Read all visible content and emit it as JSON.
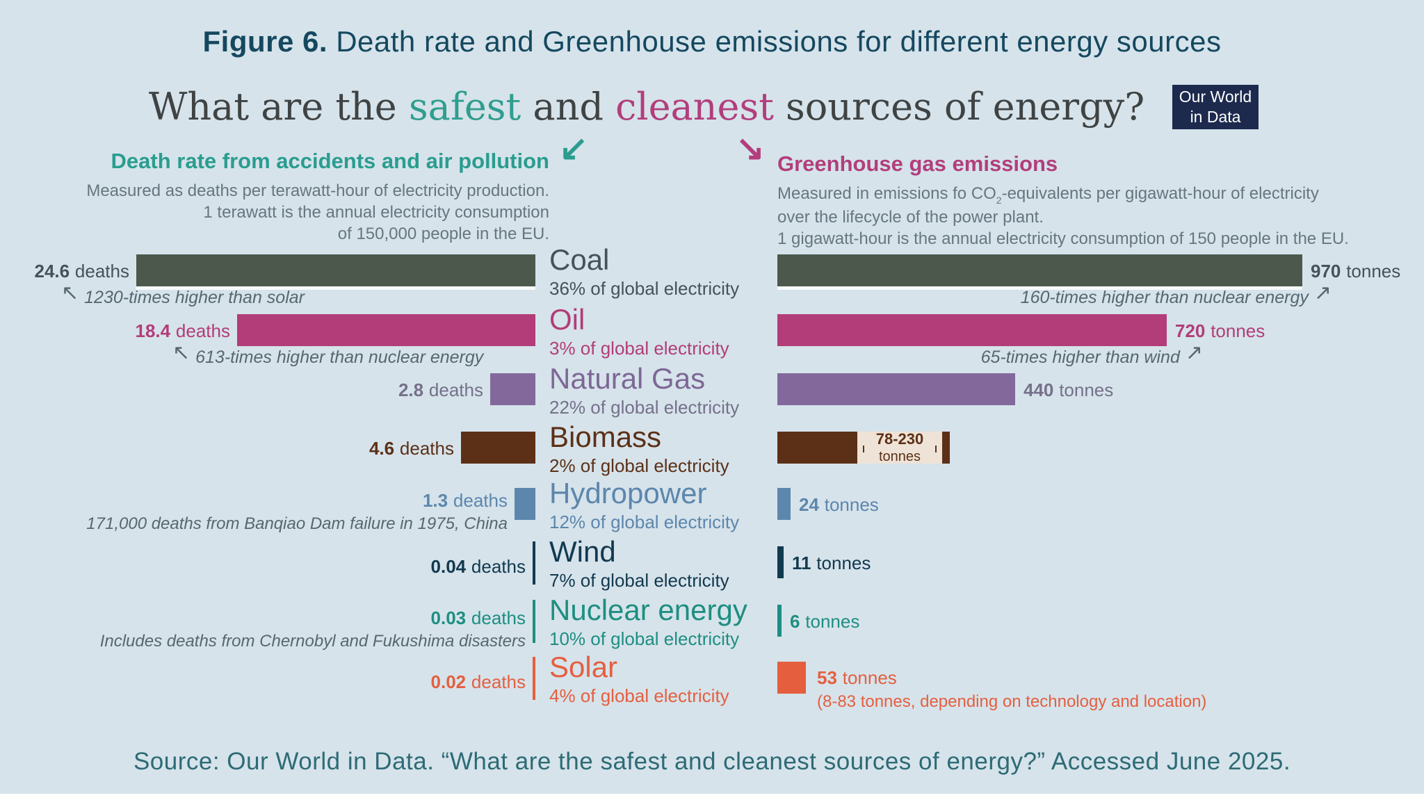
{
  "title": {
    "prefix": "Figure 6.",
    "rest": " Death rate and Greenhouse emissions for different energy sources"
  },
  "subtitle": {
    "part1": "What are the ",
    "safest": "safest",
    "part2": " and ",
    "cleanest": "cleanest",
    "part3": " sources of energy?"
  },
  "logo": {
    "line1": "Our World",
    "line2": "in Data"
  },
  "icons": {
    "down_left_arrow": "↙",
    "down_right_arrow": "↘",
    "up_left_arrow": "↖",
    "up_right_arrow": "↗"
  },
  "left_panel": {
    "heading": "Death rate from accidents and air pollution",
    "sub1": "Measured as deaths per terawatt-hour of electricity production.",
    "sub2": "1 terawatt is the annual electricity consumption",
    "sub3": "of 150,000 people in the EU."
  },
  "right_panel": {
    "heading": "Greenhouse gas emissions",
    "sub1_pre": "Measured in emissions fo CO",
    "sub1_sub": "2",
    "sub1_post": "-equivalents per gigawatt-hour of electricity",
    "sub2": "over the lifecycle of the power plant.",
    "sub3": "1 gigawatt-hour is the annual electricity consumption of 150 people in the EU."
  },
  "source": "Source: Our World in Data. “What are the safest and cleanest sources of energy?” Accessed June 2025.",
  "rows": [
    {
      "name": "Coal",
      "share": "36% of global electricity",
      "deaths_value": "24.6",
      "deaths_unit": "deaths",
      "tonnes_value": "970",
      "tonnes_unit": "tonnes",
      "left_note": "1230-times higher than solar",
      "right_note": "160-times higher than nuclear energy"
    },
    {
      "name": "Oil",
      "share": "3% of global electricity",
      "deaths_value": "18.4",
      "deaths_unit": "deaths",
      "tonnes_value": "720",
      "tonnes_unit": "tonnes",
      "left_note": "613-times higher than nuclear energy",
      "right_note": "65-times higher than wind"
    },
    {
      "name": "Natural Gas",
      "share": "22% of global electricity",
      "deaths_value": "2.8",
      "deaths_unit": "deaths",
      "tonnes_value": "440",
      "tonnes_unit": "tonnes"
    },
    {
      "name": "Biomass",
      "share": "2% of global electricity",
      "deaths_value": "4.6",
      "deaths_unit": "deaths",
      "range_top": "78-230",
      "range_bottom": "tonnes"
    },
    {
      "name": "Hydropower",
      "share": "12% of global electricity",
      "deaths_value": "1.3",
      "deaths_unit": "deaths",
      "tonnes_value": "24",
      "tonnes_unit": "tonnes",
      "left_note": "171,000 deaths from Banqiao Dam failure in 1975, China"
    },
    {
      "name": "Wind",
      "share": "7% of global electricity",
      "deaths_value": "0.04",
      "deaths_unit": "deaths",
      "tonnes_value": "11",
      "tonnes_unit": "tonnes"
    },
    {
      "name": "Nuclear energy",
      "share": "10% of global electricity",
      "deaths_value": "0.03",
      "deaths_unit": "deaths",
      "tonnes_value": "6",
      "tonnes_unit": "tonnes",
      "left_note": "Includes deaths from Chernobyl and Fukushima disasters"
    },
    {
      "name": "Solar",
      "share": "4% of global electricity",
      "deaths_value": "0.02",
      "deaths_unit": "deaths",
      "tonnes_value": "53",
      "tonnes_unit": "tonnes",
      "tonnes_note": "(8-83 tonnes, depending on technology and location)"
    }
  ],
  "colors": {
    "background": "#d6e3eb",
    "title": "#15485f",
    "safest_accent": "#2f9e8e",
    "cleanest_accent": "#b23e7c",
    "coal": "#4d584d",
    "oil": "#b23d78",
    "natural_gas": "#83699b",
    "biomass": "#5c3017",
    "hydropower": "#5d86ac",
    "wind": "#0f3a4f",
    "nuclear": "#1e8e81",
    "solar": "#e55f3f",
    "annotation_gray": "#57676f",
    "range_box": "#efe3d7",
    "logo_bg": "#1d2a4e",
    "source_text": "#2d6b75"
  },
  "chart_data": {
    "type": "bar",
    "orientation": "horizontal",
    "title": "What are the safest and cleanest sources of energy?",
    "categories": [
      "Coal",
      "Oil",
      "Natural Gas",
      "Biomass",
      "Hydropower",
      "Wind",
      "Nuclear energy",
      "Solar"
    ],
    "series": [
      {
        "name": "Death rate from accidents and air pollution (deaths per terawatt-hour)",
        "values": [
          24.6,
          18.4,
          2.8,
          4.6,
          1.3,
          0.04,
          0.03,
          0.02
        ]
      },
      {
        "name": "Greenhouse gas emissions (tonnes CO2-equivalents per gigawatt-hour)",
        "values": [
          970,
          720,
          440,
          78,
          24,
          11,
          6,
          53
        ]
      }
    ],
    "share_of_global_electricity_pct": [
      36,
      3,
      22,
      2,
      12,
      7,
      10,
      4
    ],
    "biomass_emissions_range_tonnes": [
      78,
      230
    ],
    "solar_emissions_range_tonnes": [
      8,
      83
    ],
    "legend_position": "none",
    "grid": false
  }
}
